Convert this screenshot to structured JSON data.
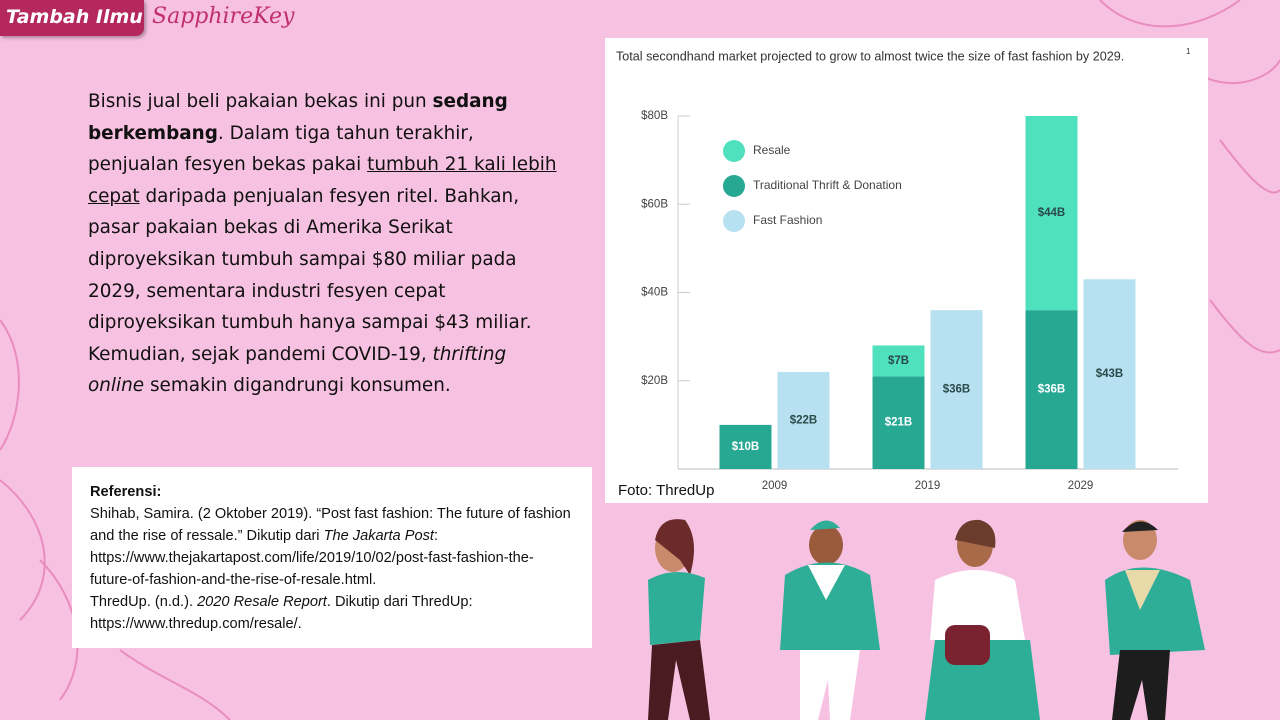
{
  "header": {
    "badge": "Tambah Ilmu",
    "brand": "SapphireKey"
  },
  "body": {
    "runs": [
      {
        "text": "Bisnis jual beli pakaian bekas ini pun "
      },
      {
        "text": "sedang berkembang",
        "bold": true
      },
      {
        "text": ". Dalam tiga tahun terakhir, penjualan fesyen bekas pakai "
      },
      {
        "text": "tumbuh 21 kali lebih cepat",
        "underline": true
      },
      {
        "text": " daripada penjualan fesyen ritel. Bahkan, pasar pakaian bekas di Amerika Serikat diproyeksikan tumbuh sampai $80 miliar pada 2029, sementara industri fesyen cepat diproyeksikan tumbuh hanya sampai $43 miliar. Kemudian, sejak pandemi COVID-19, "
      },
      {
        "text": "thrifting online",
        "italic": true
      },
      {
        "text": " semakin digandrungi konsumen."
      }
    ]
  },
  "references": {
    "title": "Referensi:",
    "entries": [
      {
        "runs": [
          {
            "text": "Shihab, Samira. (2 Oktober 2019). “Post fast fashion: The future of fashion and the rise of ressale.”  Dikutip dari "
          },
          {
            "text": "The Jakarta Post",
            "italic": true
          },
          {
            "text": ": https://www.thejakartapost.com/life/2019/10/02/post-fast-fashion-the-future-of-fashion-and-the-rise-of-resale.html."
          }
        ]
      },
      {
        "runs": [
          {
            "text": "ThredUp. (n.d.). "
          },
          {
            "text": "2020 Resale Report",
            "italic": true
          },
          {
            "text": ". Dikutip dari ThredUp: https://www.thredup.com/resale/."
          }
        ]
      }
    ]
  },
  "photo_credit": "Foto: ThredUp",
  "chart_data": {
    "type": "bar",
    "title": "Total secondhand market projected to grow to almost twice the size of fast fashion by 2029.",
    "title_note": "1",
    "categories": [
      "2009",
      "2019",
      "2029"
    ],
    "series": [
      {
        "name": "Resale",
        "color": "#4fe0bd",
        "values": [
          null,
          7,
          44
        ],
        "value_labels": [
          null,
          "$7B",
          "$44B"
        ]
      },
      {
        "name": "Traditional Thrift & Donation",
        "color": "#26a893",
        "values": [
          10,
          21,
          36
        ],
        "value_labels": [
          "$10B",
          "$21B",
          "$36B"
        ]
      },
      {
        "name": "Fast Fashion",
        "color": "#b7e1f1",
        "values": [
          22,
          36,
          43
        ],
        "value_labels": [
          "$22B",
          "$36B",
          "$43B"
        ]
      }
    ],
    "ylim": [
      0,
      80
    ],
    "yticks": [
      {
        "value": 20,
        "label": "$20B"
      },
      {
        "value": 40,
        "label": "$40B"
      },
      {
        "value": 60,
        "label": "$60B"
      },
      {
        "value": 80,
        "label": "$80B"
      }
    ]
  }
}
